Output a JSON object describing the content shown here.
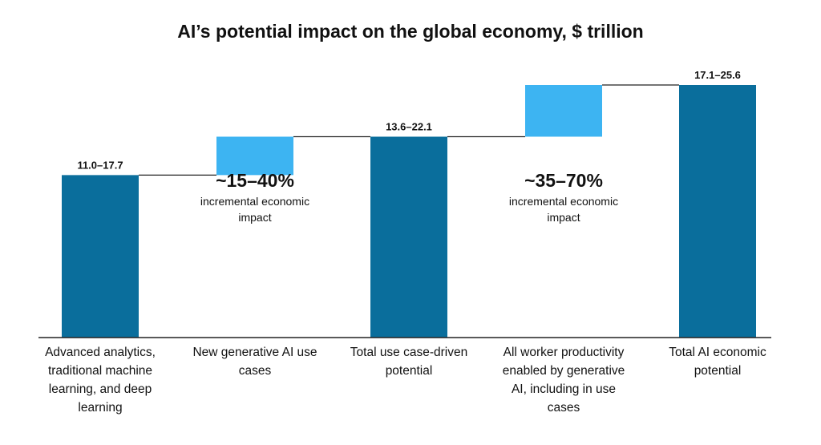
{
  "chart_data": {
    "type": "bar",
    "title": "AI’s potential impact on the global economy, $ trillion",
    "xlabel": "",
    "ylabel": "",
    "grid": false,
    "categories": [
      "Advanced analytics, traditional machine learning, and deep learning",
      "New generative AI use cases",
      "Total use case-driven potential",
      "All worker productivity enabled by generative AI, including in use cases",
      "Total AI economic potential"
    ],
    "series": [
      {
        "values": [
          {
            "low": 0,
            "high": 11.0,
            "label": "11.0–17.7",
            "kind": "total"
          },
          {
            "low": 11.0,
            "high": 13.6,
            "label": "",
            "kind": "increment"
          },
          {
            "low": 0,
            "high": 13.6,
            "label": "13.6–22.1",
            "kind": "total"
          },
          {
            "low": 13.6,
            "high": 17.1,
            "label": "",
            "kind": "increment"
          },
          {
            "low": 0,
            "high": 17.1,
            "label": "17.1–25.6",
            "kind": "total"
          }
        ]
      }
    ],
    "ylim": [
      0,
      17.1
    ],
    "colors": {
      "total": "#0a6e9c",
      "increment": "#3db4f2",
      "axis": "#222222",
      "connector": "#222222"
    },
    "annotations": [
      {
        "pct": "~15–40%",
        "text": "incremental economic impact",
        "category_index": 1
      },
      {
        "pct": "~35–70%",
        "text": "incremental economic impact",
        "category_index": 3
      }
    ]
  }
}
